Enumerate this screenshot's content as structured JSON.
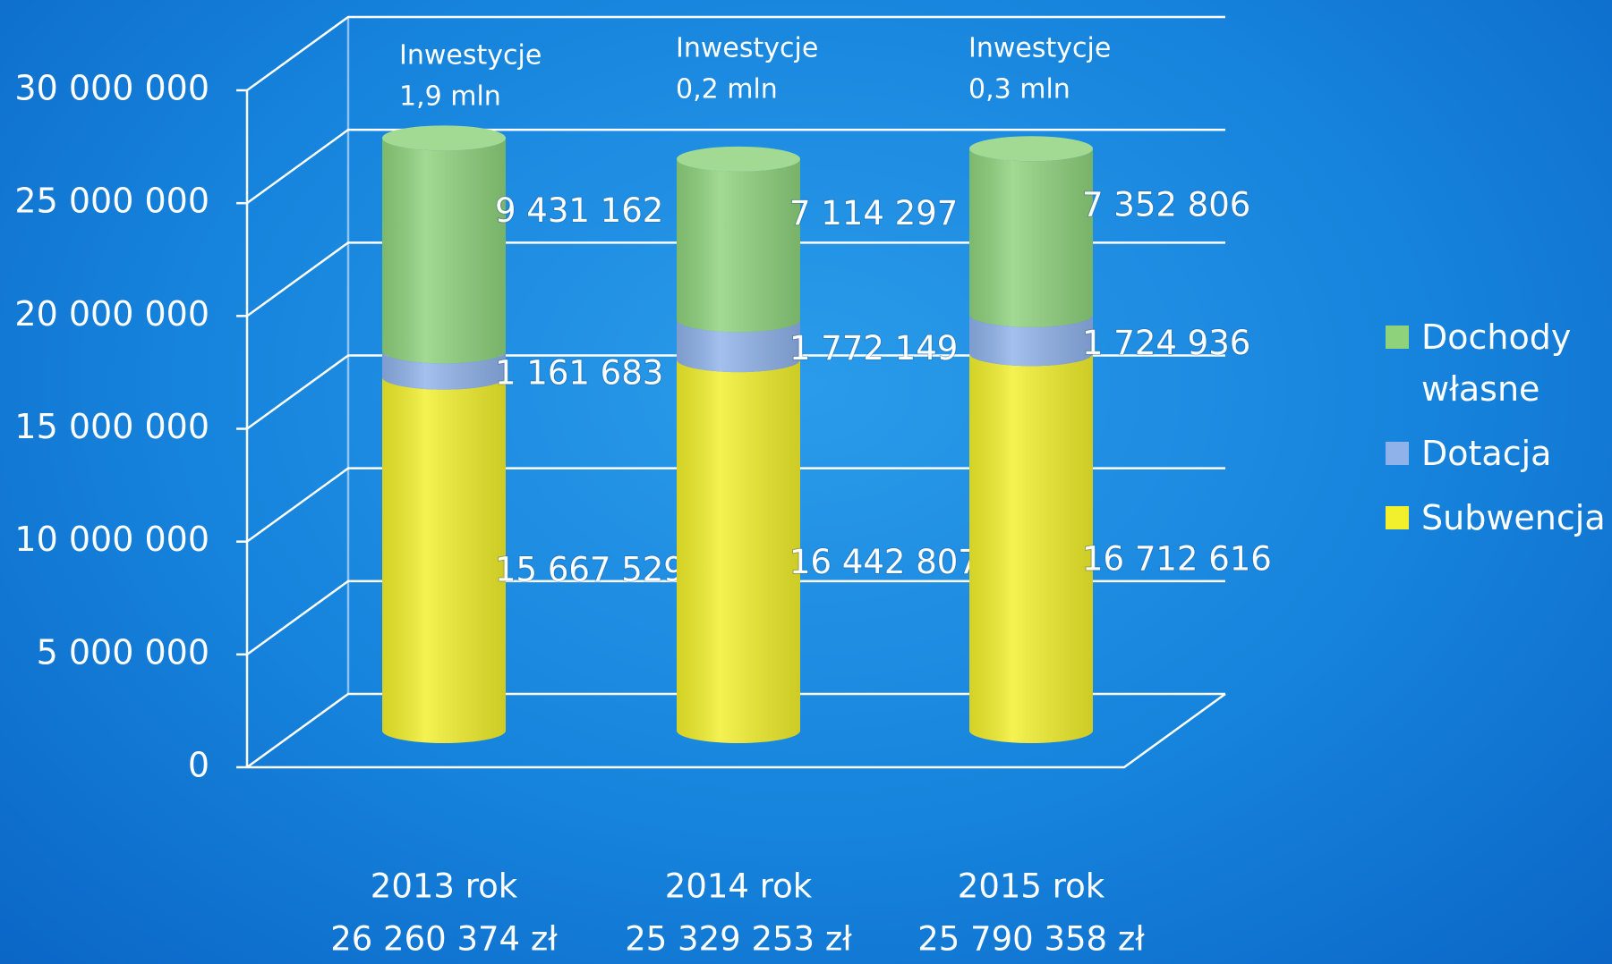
{
  "chart_data": {
    "type": "bar3d_stacked",
    "categories": [
      "2013 rok",
      "2014 rok",
      "2015  rok"
    ],
    "category_totals": [
      "26 260 374 zł",
      "25 329 253 zł",
      "25 790 358 zł"
    ],
    "annotations": [
      [
        "Inwestycje",
        "1,9 mln"
      ],
      [
        "Inwestycje",
        "0,2 mln"
      ],
      [
        "Inwestycje",
        "0,3 mln"
      ]
    ],
    "series": [
      {
        "name": "Subwencja",
        "color": "#f2ef2c",
        "values": [
          15667529,
          16442807,
          16712616
        ],
        "value_labels": [
          "15 667 529",
          "16 442 807",
          "16 712 616"
        ]
      },
      {
        "name": "Dotacja",
        "color": "#8fb2ea",
        "values": [
          1161683,
          1772149,
          1724936
        ],
        "value_labels": [
          "1 161 683",
          "1 772 149",
          "1 724 936"
        ]
      },
      {
        "name": "Dochody własne",
        "color": "#8ed27c",
        "values": [
          9431162,
          7114297,
          7352806
        ],
        "value_labels": [
          "9 431 162",
          "7 114 297",
          "7 352 806"
        ]
      }
    ],
    "ylim": [
      0,
      30000000
    ],
    "yticks": [
      {
        "value": 0,
        "label": "0"
      },
      {
        "value": 5000000,
        "label": "5 000 000"
      },
      {
        "value": 10000000,
        "label": "10 000 000"
      },
      {
        "value": 15000000,
        "label": "15 000 000"
      },
      {
        "value": 20000000,
        "label": "20 000 000"
      },
      {
        "value": 25000000,
        "label": "25 000 000"
      },
      {
        "value": 30000000,
        "label": "30 000 000"
      }
    ],
    "grid": true,
    "legend": "right"
  }
}
